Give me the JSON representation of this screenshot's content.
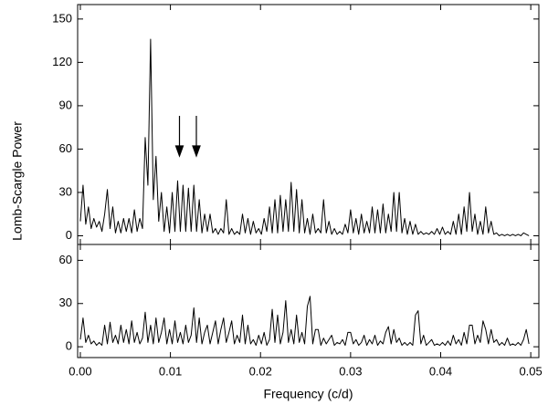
{
  "chart_data": [
    {
      "type": "line",
      "ylabel": "Lomb-Scargle Power",
      "xlim": [
        -0.0003,
        0.0509
      ],
      "ylim": [
        -6,
        160
      ],
      "xticks": [
        0,
        0.01,
        0.02,
        0.03,
        0.04,
        0.05
      ],
      "yticks": [
        0,
        30,
        60,
        90,
        120,
        150
      ],
      "color": "#000000",
      "x": [
        0,
        0.0003,
        0.0006,
        0.0009,
        0.0012,
        0.0015,
        0.0018,
        0.0021,
        0.0024,
        0.0027,
        0.003,
        0.0033,
        0.0036,
        0.0039,
        0.0042,
        0.0045,
        0.0048,
        0.0051,
        0.0054,
        0.0057,
        0.006,
        0.0063,
        0.0066,
        0.0069,
        0.0072,
        0.0075,
        0.0078,
        0.0081,
        0.0084,
        0.0087,
        0.009,
        0.0093,
        0.0096,
        0.0099,
        0.0102,
        0.0105,
        0.0108,
        0.0111,
        0.0114,
        0.0117,
        0.012,
        0.0123,
        0.0126,
        0.0129,
        0.0132,
        0.0135,
        0.0138,
        0.0141,
        0.0144,
        0.0147,
        0.015,
        0.0153,
        0.0156,
        0.0159,
        0.0162,
        0.0165,
        0.0168,
        0.0171,
        0.0174,
        0.0177,
        0.018,
        0.0183,
        0.0186,
        0.0189,
        0.0192,
        0.0195,
        0.0198,
        0.0201,
        0.0204,
        0.0207,
        0.021,
        0.0213,
        0.0216,
        0.0219,
        0.0222,
        0.0225,
        0.0228,
        0.0231,
        0.0234,
        0.0237,
        0.024,
        0.0243,
        0.0246,
        0.0249,
        0.0252,
        0.0255,
        0.0258,
        0.0261,
        0.0264,
        0.0267,
        0.027,
        0.0273,
        0.0276,
        0.0279,
        0.0282,
        0.0285,
        0.0288,
        0.0291,
        0.0294,
        0.0297,
        0.03,
        0.0303,
        0.0306,
        0.0309,
        0.0312,
        0.0315,
        0.0318,
        0.0321,
        0.0324,
        0.0327,
        0.033,
        0.0333,
        0.0336,
        0.0339,
        0.0342,
        0.0345,
        0.0348,
        0.0351,
        0.0354,
        0.0357,
        0.036,
        0.0363,
        0.0366,
        0.0369,
        0.0372,
        0.0375,
        0.0378,
        0.0381,
        0.0384,
        0.0387,
        0.039,
        0.0393,
        0.0396,
        0.0399,
        0.0402,
        0.0405,
        0.0408,
        0.0411,
        0.0414,
        0.0417,
        0.042,
        0.0423,
        0.0426,
        0.0429,
        0.0432,
        0.0435,
        0.0438,
        0.0441,
        0.0444,
        0.0447,
        0.045,
        0.0453,
        0.0456,
        0.0459,
        0.0462,
        0.0465,
        0.0468,
        0.0471,
        0.0474,
        0.0477,
        0.048,
        0.0483,
        0.0486,
        0.0489,
        0.0492,
        0.0495,
        0.0498
      ],
      "values": [
        10,
        35,
        8,
        20,
        5,
        12,
        6,
        10,
        3,
        15,
        32,
        5,
        20,
        2,
        10,
        2,
        12,
        3,
        12,
        2,
        18,
        3,
        12,
        5,
        68,
        35,
        136,
        25,
        55,
        10,
        30,
        3,
        20,
        2,
        30,
        3,
        38,
        3,
        35,
        3,
        33,
        3,
        35,
        3,
        25,
        2,
        15,
        3,
        15,
        2,
        5,
        1,
        5,
        2,
        25,
        1,
        5,
        1,
        3,
        1,
        15,
        2,
        12,
        1,
        10,
        2,
        5,
        1,
        12,
        3,
        20,
        2,
        25,
        2,
        28,
        3,
        25,
        3,
        37,
        3,
        32,
        2,
        25,
        2,
        12,
        1,
        15,
        2,
        5,
        2,
        25,
        2,
        10,
        1,
        5,
        1,
        3,
        1,
        8,
        2,
        18,
        2,
        12,
        1,
        15,
        2,
        10,
        2,
        20,
        2,
        18,
        2,
        22,
        2,
        15,
        3,
        30,
        3,
        30,
        2,
        12,
        1,
        10,
        1,
        8,
        1,
        3,
        1,
        2,
        1,
        3,
        1,
        5,
        1,
        6,
        1,
        3,
        1,
        10,
        1,
        15,
        1,
        20,
        3,
        30,
        3,
        15,
        1,
        10,
        1,
        20,
        2,
        10,
        1,
        2,
        0,
        1,
        0,
        1,
        0,
        1,
        0,
        1,
        0,
        2,
        1,
        0
      ]
    },
    {
      "type": "line",
      "xlabel": "Frequency (c/d)",
      "xlim": [
        -0.0003,
        0.0509
      ],
      "ylim": [
        -7.5,
        71
      ],
      "xticks": [
        {
          "value": 0,
          "label": "0.00"
        },
        {
          "value": 0.01,
          "label": "0.01"
        },
        {
          "value": 0.02,
          "label": "0.02"
        },
        {
          "value": 0.03,
          "label": "0.03"
        },
        {
          "value": 0.04,
          "label": "0.04"
        },
        {
          "value": 0.05,
          "label": "0.05"
        }
      ],
      "yticks": [
        0,
        30,
        60
      ],
      "color": "#000000",
      "x": [
        0,
        0.0003,
        0.0006,
        0.0009,
        0.0012,
        0.0015,
        0.0018,
        0.0021,
        0.0024,
        0.0027,
        0.003,
        0.0033,
        0.0036,
        0.0039,
        0.0042,
        0.0045,
        0.0048,
        0.0051,
        0.0054,
        0.0057,
        0.006,
        0.0063,
        0.0066,
        0.0069,
        0.0072,
        0.0075,
        0.0078,
        0.0081,
        0.0084,
        0.0087,
        0.009,
        0.0093,
        0.0096,
        0.0099,
        0.0102,
        0.0105,
        0.0108,
        0.0111,
        0.0114,
        0.0117,
        0.012,
        0.0123,
        0.0126,
        0.0129,
        0.0132,
        0.0135,
        0.0138,
        0.0141,
        0.0144,
        0.0147,
        0.015,
        0.0153,
        0.0156,
        0.0159,
        0.0162,
        0.0165,
        0.0168,
        0.0171,
        0.0174,
        0.0177,
        0.018,
        0.0183,
        0.0186,
        0.0189,
        0.0192,
        0.0195,
        0.0198,
        0.0201,
        0.0204,
        0.0207,
        0.021,
        0.0213,
        0.0216,
        0.0219,
        0.0222,
        0.0225,
        0.0228,
        0.0231,
        0.0234,
        0.0237,
        0.024,
        0.0243,
        0.0246,
        0.0249,
        0.0252,
        0.0255,
        0.0258,
        0.0261,
        0.0264,
        0.0267,
        0.027,
        0.0273,
        0.0276,
        0.0279,
        0.0282,
        0.0285,
        0.0288,
        0.0291,
        0.0294,
        0.0297,
        0.03,
        0.0303,
        0.0306,
        0.0309,
        0.0312,
        0.0315,
        0.0318,
        0.0321,
        0.0324,
        0.0327,
        0.033,
        0.0333,
        0.0336,
        0.0339,
        0.0342,
        0.0345,
        0.0348,
        0.0351,
        0.0354,
        0.0357,
        0.036,
        0.0363,
        0.0366,
        0.0369,
        0.0372,
        0.0375,
        0.0378,
        0.0381,
        0.0384,
        0.0387,
        0.039,
        0.0393,
        0.0396,
        0.0399,
        0.0402,
        0.0405,
        0.0408,
        0.0411,
        0.0414,
        0.0417,
        0.042,
        0.0423,
        0.0426,
        0.0429,
        0.0432,
        0.0435,
        0.0438,
        0.0441,
        0.0444,
        0.0447,
        0.045,
        0.0453,
        0.0456,
        0.0459,
        0.0462,
        0.0465,
        0.0468,
        0.0471,
        0.0474,
        0.0477,
        0.048,
        0.0483,
        0.0486,
        0.0489,
        0.0492,
        0.0495,
        0.0498
      ],
      "values": [
        5,
        20,
        3,
        8,
        2,
        4,
        1,
        3,
        1,
        15,
        2,
        17,
        3,
        8,
        2,
        15,
        3,
        12,
        2,
        18,
        3,
        10,
        2,
        6,
        24,
        3,
        15,
        2,
        20,
        3,
        10,
        20,
        2,
        12,
        2,
        18,
        3,
        10,
        2,
        15,
        3,
        8,
        27,
        3,
        20,
        2,
        10,
        15,
        2,
        10,
        18,
        2,
        12,
        20,
        3,
        10,
        18,
        2,
        8,
        3,
        22,
        2,
        15,
        2,
        5,
        1,
        8,
        2,
        10,
        1,
        5,
        26,
        3,
        22,
        2,
        10,
        32,
        3,
        12,
        2,
        22,
        3,
        10,
        2,
        28,
        35,
        2,
        12,
        12,
        1,
        6,
        2,
        5,
        8,
        1,
        3,
        2,
        5,
        1,
        10,
        10,
        2,
        5,
        1,
        3,
        8,
        1,
        5,
        2,
        8,
        1,
        4,
        2,
        10,
        14,
        2,
        12,
        3,
        6,
        1,
        3,
        1,
        3,
        1,
        22,
        25,
        2,
        8,
        1,
        3,
        5,
        1,
        2,
        1,
        3,
        1,
        4,
        1,
        8,
        2,
        5,
        1,
        10,
        2,
        15,
        15,
        2,
        8,
        3,
        18,
        12,
        2,
        12,
        3,
        5,
        1,
        3,
        1,
        6,
        1,
        2,
        1,
        3,
        1,
        5,
        12,
        2
      ]
    }
  ]
}
